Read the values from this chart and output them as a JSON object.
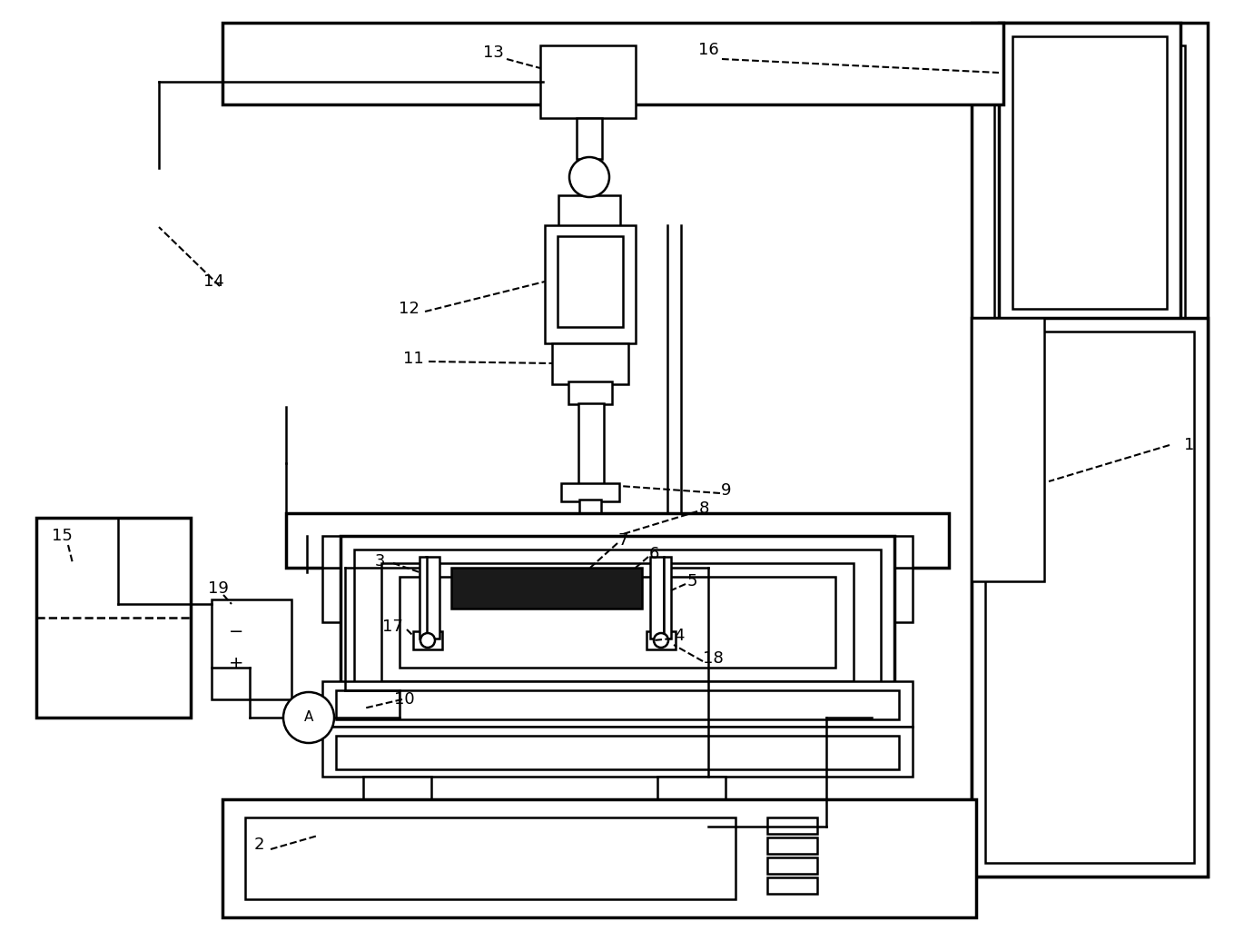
{
  "bg_color": "#ffffff",
  "lc": "#000000",
  "lw": 1.8,
  "tlw": 2.5,
  "fs": 13,
  "figsize": [
    13.7,
    10.25
  ],
  "dpi": 100
}
